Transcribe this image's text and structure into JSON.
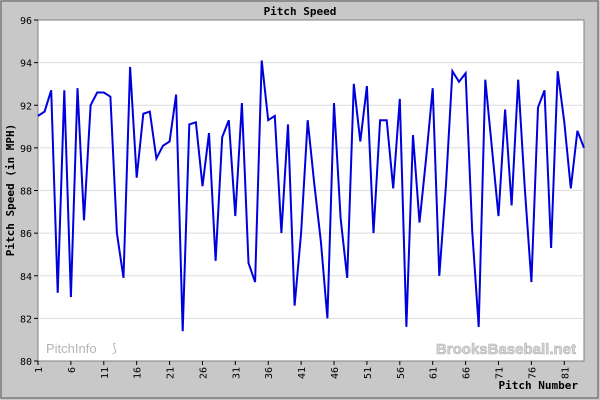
{
  "chart_data": {
    "type": "line",
    "title": "Pitch Speed",
    "xlabel": "Pitch Number",
    "ylabel": "Pitch Speed (in MPH)",
    "ylim": [
      80,
      96
    ],
    "xlim": [
      1,
      84
    ],
    "x_ticks": [
      1,
      6,
      11,
      16,
      21,
      26,
      31,
      36,
      41,
      46,
      51,
      56,
      61,
      66,
      71,
      76,
      81
    ],
    "y_ticks": [
      80,
      82,
      84,
      86,
      88,
      90,
      92,
      94,
      96
    ],
    "grid": true,
    "series_color": "#0000dd",
    "x": [
      1,
      2,
      3,
      4,
      5,
      6,
      7,
      8,
      9,
      10,
      11,
      12,
      13,
      14,
      15,
      16,
      17,
      18,
      19,
      20,
      21,
      22,
      23,
      24,
      25,
      26,
      27,
      28,
      29,
      30,
      31,
      32,
      33,
      34,
      35,
      36,
      37,
      38,
      39,
      40,
      41,
      42,
      43,
      44,
      45,
      46,
      47,
      48,
      49,
      50,
      51,
      52,
      53,
      54,
      55,
      56,
      57,
      58,
      59,
      60,
      61,
      62,
      63,
      64,
      65,
      66,
      67,
      68,
      69,
      70,
      71,
      72,
      73,
      74,
      75,
      76,
      77,
      78,
      79,
      80,
      81,
      82,
      83,
      84
    ],
    "values": [
      91.5,
      91.7,
      92.7,
      83.2,
      92.7,
      83.0,
      92.8,
      86.6,
      92.0,
      92.6,
      92.6,
      92.4,
      86.0,
      83.9,
      93.8,
      88.6,
      91.6,
      91.7,
      89.5,
      90.1,
      90.3,
      92.5,
      81.4,
      91.1,
      91.2,
      88.2,
      90.7,
      84.7,
      90.5,
      91.3,
      86.8,
      92.1,
      84.6,
      83.7,
      94.1,
      91.3,
      91.5,
      86.0,
      91.1,
      82.6,
      86.0,
      91.3,
      88.3,
      85.6,
      82.0,
      92.1,
      86.7,
      83.9,
      93.0,
      90.3,
      92.9,
      86.0,
      91.3,
      91.3,
      88.1,
      92.3,
      81.6,
      90.6,
      86.5,
      89.5,
      92.8,
      84.0,
      88.2,
      93.6,
      93.1,
      93.5,
      86.1,
      81.6,
      93.2,
      90.0,
      86.8,
      91.8,
      87.3,
      93.2,
      88.1,
      83.7,
      91.9,
      92.7,
      85.3,
      93.6,
      91.2,
      88.1,
      90.8,
      90.0
    ]
  },
  "watermarks": {
    "left": "PitchInfo",
    "right": "BrooksBaseball.net"
  },
  "colors": {
    "background": "#c8c8c8",
    "plot_background": "#ffffff",
    "grid": "#dcdcdc",
    "line": "#0000dd"
  }
}
